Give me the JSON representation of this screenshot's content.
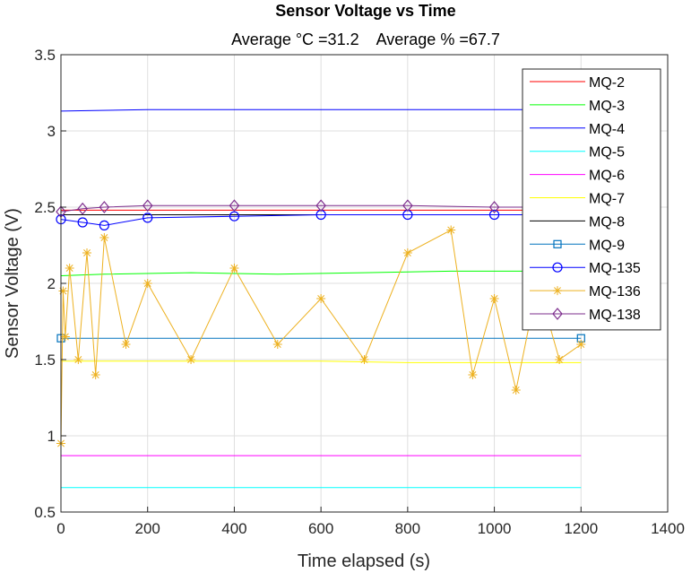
{
  "chart_data": {
    "type": "line",
    "title": "Sensor Voltage vs Time",
    "subtitle": "Average °C =31.2    Average % =67.7",
    "xlabel": "Time elapsed (s)",
    "ylabel": "Sensor Voltage (V)",
    "xlim": [
      0,
      1400
    ],
    "ylim": [
      0.5,
      3.5
    ],
    "xticks": [
      0,
      200,
      400,
      600,
      800,
      1000,
      1200,
      1400
    ],
    "yticks": [
      0.5,
      1,
      1.5,
      2,
      2.5,
      3,
      3.5
    ],
    "grid": true,
    "legend_position": "top-right",
    "series": [
      {
        "name": "MQ-2",
        "color": "#ff0000",
        "marker": "none",
        "x": [
          0,
          1200
        ],
        "values": [
          2.48,
          2.48
        ]
      },
      {
        "name": "MQ-3",
        "color": "#00ff00",
        "marker": "none",
        "x": [
          0,
          100,
          300,
          500,
          700,
          900,
          1100,
          1200
        ],
        "values": [
          2.05,
          2.06,
          2.07,
          2.06,
          2.07,
          2.08,
          2.08,
          2.08
        ]
      },
      {
        "name": "MQ-4",
        "color": "#0000ff",
        "marker": "none",
        "x": [
          0,
          200,
          400,
          600,
          800,
          1000,
          1200
        ],
        "values": [
          3.13,
          3.14,
          3.14,
          3.14,
          3.14,
          3.14,
          3.14
        ]
      },
      {
        "name": "MQ-5",
        "color": "#00ffff",
        "marker": "none",
        "x": [
          0,
          200,
          400,
          600,
          800,
          1000,
          1200
        ],
        "values": [
          0.66,
          0.66,
          0.66,
          0.66,
          0.66,
          0.66,
          0.66
        ]
      },
      {
        "name": "MQ-6",
        "color": "#ff00ff",
        "marker": "none",
        "x": [
          0,
          200,
          400,
          600,
          800,
          1000,
          1200
        ],
        "values": [
          0.87,
          0.87,
          0.87,
          0.87,
          0.87,
          0.87,
          0.87
        ]
      },
      {
        "name": "MQ-7",
        "color": "#ffff00",
        "marker": "none",
        "x": [
          0,
          200,
          400,
          600,
          800,
          1000,
          1200
        ],
        "values": [
          1.49,
          1.49,
          1.49,
          1.49,
          1.48,
          1.48,
          1.48
        ]
      },
      {
        "name": "MQ-8",
        "color": "#000000",
        "marker": "none",
        "x": [
          0,
          1200
        ],
        "values": [
          2.45,
          2.45
        ]
      },
      {
        "name": "MQ-9",
        "color": "#0072bd",
        "marker": "square",
        "x": [
          0,
          1200
        ],
        "values": [
          1.64,
          1.64
        ]
      },
      {
        "name": "MQ-135",
        "color": "#0000ff",
        "marker": "circle",
        "x": [
          0,
          50,
          100,
          200,
          400,
          600,
          800,
          1000,
          1200
        ],
        "values": [
          2.42,
          2.4,
          2.38,
          2.43,
          2.44,
          2.45,
          2.45,
          2.45,
          2.45
        ]
      },
      {
        "name": "MQ-136",
        "color": "#edb120",
        "marker": "asterisk",
        "x": [
          0,
          5,
          10,
          20,
          40,
          60,
          80,
          100,
          150,
          200,
          300,
          400,
          500,
          600,
          700,
          800,
          900,
          950,
          1000,
          1050,
          1100,
          1150,
          1200
        ],
        "values": [
          0.95,
          1.95,
          1.65,
          2.1,
          1.5,
          2.2,
          1.4,
          2.3,
          1.6,
          2.0,
          1.5,
          2.1,
          1.6,
          1.9,
          1.5,
          2.2,
          2.35,
          1.4,
          1.9,
          1.3,
          2.0,
          1.5,
          1.6
        ]
      },
      {
        "name": "MQ-138",
        "color": "#7e2f8e",
        "marker": "diamond",
        "x": [
          0,
          50,
          100,
          200,
          400,
          600,
          800,
          1000,
          1200
        ],
        "values": [
          2.47,
          2.49,
          2.5,
          2.51,
          2.51,
          2.51,
          2.51,
          2.5,
          2.5
        ]
      }
    ]
  }
}
